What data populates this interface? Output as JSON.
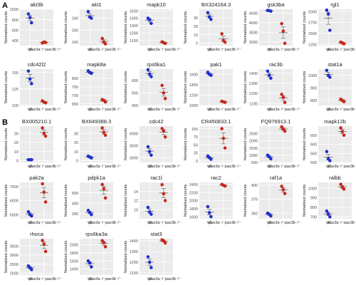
{
  "figure": {
    "ylabel": "Normalized counts",
    "group_labels": [
      "wt",
      "pax3a⁻/⁻pax3b⁻/⁻"
    ],
    "colors": {
      "wt": "#1f2fd0",
      "mutant": "#c8281e",
      "panel_bg": "#ebebeb",
      "grid": "#ffffff",
      "axis_text": "#4d4d4d"
    }
  },
  "chart_data": [
    {
      "panel": "A",
      "type": "scatter",
      "title": "akt3b",
      "ylim": [
        300,
        1000
      ],
      "yticks": [
        400,
        600,
        800,
        1000
      ],
      "tick_labels": [
        "400",
        "600",
        "800",
        "1000"
      ],
      "wt": [
        910,
        840,
        740
      ],
      "mutant": [
        350,
        370,
        360
      ]
    },
    {
      "panel": "A",
      "type": "scatter",
      "title": "akt1",
      "ylim": [
        148,
        270
      ],
      "yticks": [
        160,
        200,
        240
      ],
      "tick_labels": [
        "160",
        "200",
        "240"
      ],
      "wt": [
        262,
        244,
        240
      ],
      "mutant": [
        172,
        160,
        154
      ]
    },
    {
      "panel": "A",
      "type": "scatter",
      "title": "mapk10",
      "ylim": [
        1030,
        1520
      ],
      "yticks": [
        1100,
        1200,
        1300,
        1400,
        1500
      ],
      "tick_labels": [
        "1100",
        "1200",
        "1300",
        "1400",
        "1500"
      ],
      "wt": [
        1400,
        1380,
        1330
      ],
      "mutant": [
        1080,
        1070,
        1060
      ]
    },
    {
      "panel": "A",
      "type": "scatter",
      "title": "BX324164.3",
      "ylim": [
        -3,
        40
      ],
      "yticks": [
        0,
        10,
        20,
        30
      ],
      "tick_labels": [
        "0",
        "10",
        "20",
        "30"
      ],
      "wt": [
        36,
        31,
        28
      ],
      "mutant": [
        11,
        3,
        1
      ]
    },
    {
      "panel": "A",
      "type": "scatter",
      "title": "gsk3ba",
      "ylim": [
        2800,
        4700
      ],
      "yticks": [
        3000,
        3500,
        4000,
        4500
      ],
      "tick_labels": [
        "3000",
        "3500",
        "4000",
        "4500"
      ],
      "wt": [
        4640,
        4630,
        4600
      ],
      "mutant": [
        3950,
        3560,
        2920
      ]
    },
    {
      "panel": "A",
      "type": "scatter",
      "title": "rgl1",
      "ylim": [
        1220,
        2050
      ],
      "yticks": [
        1250,
        1500,
        1750,
        2000
      ],
      "tick_labels": [
        "1250",
        "1500",
        "1750",
        "2000"
      ],
      "wt": [
        2030,
        1940,
        1570
      ],
      "mutant": [
        1300,
        1280,
        1260
      ]
    },
    {
      "panel": "A",
      "type": "scatter",
      "title": "cdc42l2",
      "ylim": [
        100,
        155
      ],
      "yticks": [
        100,
        125,
        150
      ],
      "tick_labels": [
        "100",
        "125",
        "150"
      ],
      "wt": [
        152,
        140,
        133
      ],
      "mutant": [
        107,
        105,
        104
      ]
    },
    {
      "panel": "A",
      "type": "scatter",
      "title": "mapk8a",
      "ylim": [
        640,
        855
      ],
      "yticks": [
        650,
        700,
        750,
        800
      ],
      "tick_labels": [
        "650",
        "700",
        "750",
        "800"
      ],
      "wt": [
        845,
        835,
        830
      ],
      "mutant": [
        675,
        670,
        660
      ]
    },
    {
      "panel": "A",
      "type": "scatter",
      "title": "rps6ka1",
      "ylim": [
        400,
        690
      ],
      "yticks": [
        400,
        500,
        600
      ],
      "tick_labels": [
        "400",
        "500",
        "600"
      ],
      "wt": [
        685,
        650,
        630
      ],
      "mutant": [
        560,
        500,
        455
      ]
    },
    {
      "panel": "A",
      "type": "scatter",
      "title": "pak1",
      "ylim": [
        1000,
        1700
      ],
      "yticks": [
        1000,
        1200,
        1400,
        1600
      ],
      "tick_labels": [
        "1000",
        "1200",
        "1400",
        "1600"
      ],
      "wt": [
        1640,
        1600,
        1580
      ],
      "mutant": [
        1080,
        1070,
        1060
      ]
    },
    {
      "panel": "A",
      "type": "scatter",
      "title": "rac3b",
      "ylim": [
        1080,
        1440
      ],
      "yticks": [
        1100,
        1200,
        1300,
        1400
      ],
      "tick_labels": [
        "1100",
        "1200",
        "1300",
        "1400"
      ],
      "wt": [
        1420,
        1380,
        1350
      ],
      "mutant": [
        1190,
        1160,
        1110
      ]
    },
    {
      "panel": "A",
      "type": "scatter",
      "title": "stat1a",
      "ylim": [
        760,
        1050
      ],
      "yticks": [
        800,
        900,
        1000
      ],
      "tick_labels": [
        "800",
        "900",
        "1000"
      ],
      "wt": [
        1040,
        1000,
        985
      ],
      "mutant": [
        810,
        800,
        790
      ]
    },
    {
      "panel": "B",
      "type": "scatter",
      "title": "BX005210.1",
      "ylim": [
        -2,
        38
      ],
      "yticks": [
        0,
        10,
        20,
        30
      ],
      "tick_labels": [
        "0",
        "10",
        "20",
        "30"
      ],
      "wt": [
        1,
        1,
        1
      ],
      "mutant": [
        36,
        30,
        27
      ]
    },
    {
      "panel": "B",
      "type": "scatter",
      "title": "BX649388.3",
      "ylim": [
        -2,
        38
      ],
      "yticks": [
        0,
        10,
        20,
        30
      ],
      "tick_labels": [
        "0",
        "10",
        "20",
        "30"
      ],
      "wt": [
        5,
        4,
        3
      ],
      "mutant": [
        36,
        31,
        28
      ]
    },
    {
      "panel": "B",
      "type": "scatter",
      "title": "cdc42",
      "ylim": [
        2800,
        4300
      ],
      "yticks": [
        3000,
        3500,
        4000
      ],
      "tick_labels": [
        "3000",
        "3500",
        "4000"
      ],
      "wt": [
        3450,
        3250,
        3100
      ],
      "mutant": [
        4200,
        4100,
        3850
      ]
    },
    {
      "panel": "B",
      "type": "scatter",
      "title": "CR450833.1",
      "ylim": [
        -5,
        108
      ],
      "yticks": [
        0,
        25,
        50,
        75,
        100
      ],
      "tick_labels": [
        "0",
        "25",
        "50",
        "75",
        "100"
      ],
      "wt": [
        15,
        10,
        5
      ],
      "mutant": [
        100,
        70,
        40
      ]
    },
    {
      "panel": "B",
      "type": "scatter",
      "title": "FQ976913.1",
      "ylim": [
        500,
        3000
      ],
      "yticks": [
        500,
        1000,
        1500,
        2000,
        2500
      ],
      "tick_labels": [
        "500",
        "1000",
        "1500",
        "2000",
        "2500"
      ],
      "wt": [
        1000,
        900,
        750
      ],
      "mutant": [
        2950,
        2800,
        2650
      ]
    },
    {
      "panel": "B",
      "type": "scatter",
      "title": "mapk12b",
      "ylim": [
        500,
        700
      ],
      "yticks": [
        500,
        550,
        600,
        650
      ],
      "tick_labels": [
        "500",
        "550",
        "600",
        "650"
      ],
      "wt": [
        560,
        520,
        510
      ],
      "mutant": [
        690,
        670,
        650
      ]
    },
    {
      "panel": "B",
      "type": "scatter",
      "title": "pak2a",
      "ylim": [
        4700,
        7300
      ],
      "yticks": [
        5000,
        6000,
        7000
      ],
      "tick_labels": [
        "5000",
        "6000",
        "7000"
      ],
      "wt": [
        5200,
        5000,
        4900
      ],
      "mutant": [
        7200,
        6600,
        5900
      ]
    },
    {
      "panel": "B",
      "type": "scatter",
      "title": "pdpk1a",
      "ylim": [
        250,
        600
      ],
      "yticks": [
        300,
        400,
        500
      ],
      "tick_labels": [
        "300",
        "400",
        "500"
      ],
      "wt": [
        330,
        310,
        290
      ],
      "mutant": [
        580,
        540,
        450
      ]
    },
    {
      "panel": "B",
      "type": "scatter",
      "title": "rac1l",
      "ylim": [
        8,
        16
      ],
      "yticks": [
        10,
        12,
        14
      ],
      "tick_labels": [
        "10",
        "12",
        "14"
      ],
      "wt": [
        10.5,
        9.5,
        9.0
      ],
      "mutant": [
        15.5,
        13.5,
        12.0
      ]
    },
    {
      "panel": "B",
      "type": "scatter",
      "title": "rac2",
      "ylim": [
        1550,
        2450
      ],
      "yticks": [
        1600,
        1800,
        2000,
        2200,
        2400
      ],
      "tick_labels": [
        "1600",
        "1800",
        "2000",
        "2200",
        "2400"
      ],
      "wt": [
        1850,
        1700,
        1600
      ],
      "mutant": [
        2400,
        2380,
        2360
      ]
    },
    {
      "panel": "B",
      "type": "scatter",
      "title": "raf1a",
      "ylim": [
        340,
        405
      ],
      "yticks": [
        350,
        375,
        400
      ],
      "tick_labels": [
        "350",
        "375",
        "400"
      ],
      "wt": [
        350,
        348,
        345
      ],
      "mutant": [
        398,
        392,
        385
      ]
    },
    {
      "panel": "B",
      "type": "scatter",
      "title": "ralbb",
      "ylim": [
        680,
        1060
      ],
      "yticks": [
        700,
        800,
        900,
        1000
      ],
      "tick_labels": [
        "700",
        "800",
        "900",
        "1000"
      ],
      "wt": [
        760,
        730,
        700
      ],
      "mutant": [
        1040,
        1010,
        990
      ]
    },
    {
      "panel": "B",
      "type": "scatter",
      "title": "rhoca",
      "ylim": [
        1900,
        3900
      ],
      "yticks": [
        2000,
        2500,
        3000,
        3500
      ],
      "tick_labels": [
        "2000",
        "2500",
        "3000",
        "3500"
      ],
      "wt": [
        2400,
        2300,
        2200
      ],
      "mutant": [
        3800,
        3600,
        3200
      ]
    },
    {
      "panel": "B",
      "type": "scatter",
      "title": "rps6ka3a",
      "ylim": [
        1250,
        2150
      ],
      "yticks": [
        1400,
        1600,
        1800,
        2000
      ],
      "tick_labels": [
        "1400",
        "1600",
        "1800",
        "2000"
      ],
      "wt": [
        1600,
        1550,
        1450
      ],
      "mutant": [
        2100,
        2050,
        1950
      ]
    },
    {
      "panel": "B",
      "type": "scatter",
      "title": "stat3",
      "ylim": [
        1080,
        1420
      ],
      "yticks": [
        1100,
        1200,
        1300,
        1400
      ],
      "tick_labels": [
        "1100",
        "1200",
        "1300",
        "1400"
      ],
      "wt": [
        1250,
        1200,
        1150
      ],
      "mutant": [
        1410,
        1400,
        1380
      ]
    }
  ]
}
